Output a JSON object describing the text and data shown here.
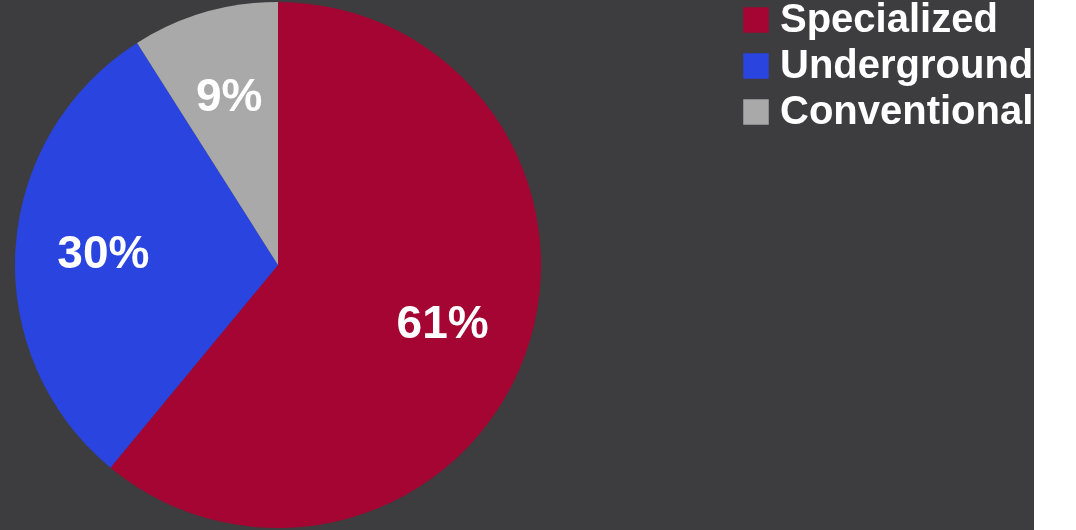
{
  "chart_data": {
    "type": "pie",
    "categories": [
      "Specialized",
      "Underground",
      "Conventional"
    ],
    "values": [
      61,
      30,
      9
    ],
    "value_labels": [
      "61%",
      "30%",
      "9%"
    ],
    "colors": [
      "#a50533",
      "#2a44e0",
      "#a9a9a9"
    ],
    "legend": "right"
  }
}
